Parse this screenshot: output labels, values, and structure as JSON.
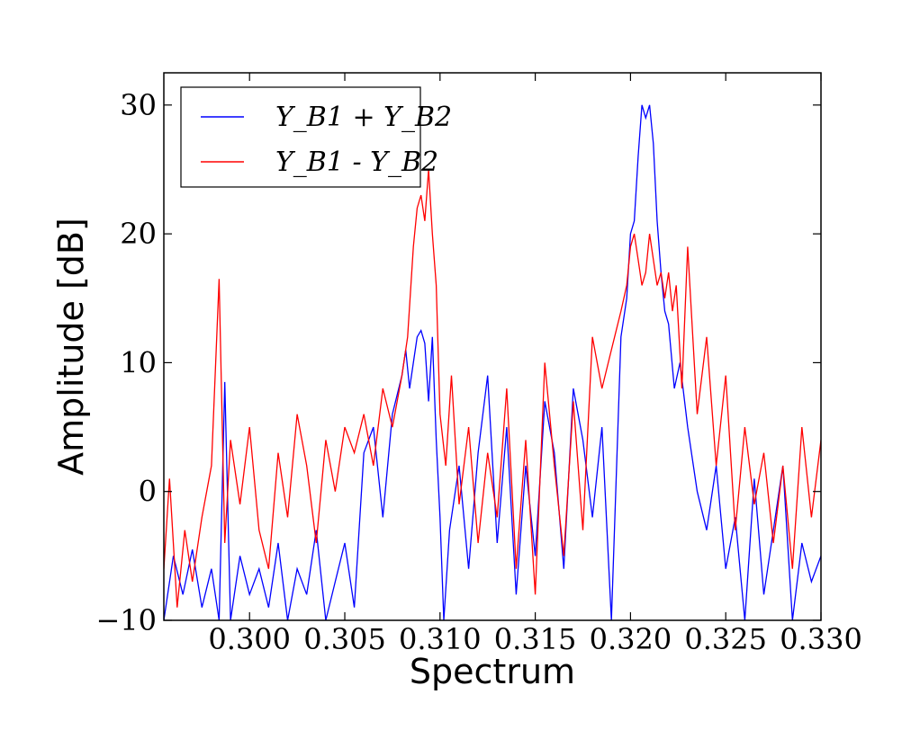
{
  "chart_data": {
    "type": "line",
    "title": "",
    "xlabel": "Spectrum",
    "ylabel": "Amplitude [dB]",
    "xlim": [
      0.2955,
      0.33
    ],
    "ylim": [
      -10,
      32.5
    ],
    "xticks": [
      0.3,
      0.305,
      0.31,
      0.315,
      0.32,
      0.325,
      0.33
    ],
    "xtick_labels": [
      "0.300",
      "0.305",
      "0.310",
      "0.315",
      "0.320",
      "0.325",
      "0.330"
    ],
    "yticks": [
      -10,
      0,
      10,
      20,
      30
    ],
    "ytick_labels": [
      "−10",
      "0",
      "10",
      "20",
      "30"
    ],
    "grid": false,
    "legend_position": "top-left",
    "series": [
      {
        "name": "Y_B1 + Y_B2",
        "color": "#0000ff",
        "x": [
          0.2955,
          0.296,
          0.2965,
          0.297,
          0.2975,
          0.298,
          0.2984,
          0.2987,
          0.299,
          0.2995,
          0.3,
          0.3005,
          0.301,
          0.3015,
          0.302,
          0.3025,
          0.303,
          0.3035,
          0.304,
          0.3045,
          0.305,
          0.3055,
          0.306,
          0.3065,
          0.307,
          0.3075,
          0.308,
          0.3082,
          0.3084,
          0.3086,
          0.3088,
          0.309,
          0.3092,
          0.3094,
          0.3096,
          0.3098,
          0.31,
          0.3102,
          0.3105,
          0.311,
          0.3115,
          0.312,
          0.3125,
          0.313,
          0.3135,
          0.314,
          0.3145,
          0.315,
          0.3155,
          0.316,
          0.3165,
          0.317,
          0.3175,
          0.318,
          0.3185,
          0.319,
          0.3195,
          0.3198,
          0.32,
          0.3202,
          0.3204,
          0.3206,
          0.3208,
          0.321,
          0.3212,
          0.3214,
          0.3216,
          0.3218,
          0.322,
          0.3223,
          0.3226,
          0.323,
          0.3235,
          0.324,
          0.3245,
          0.325,
          0.3255,
          0.326,
          0.3265,
          0.327,
          0.3275,
          0.328,
          0.3285,
          0.329,
          0.3295,
          0.33
        ],
        "values": [
          -10,
          -5,
          -8,
          -4.5,
          -9,
          -6,
          -10,
          8.5,
          -10,
          -5,
          -8,
          -6,
          -9,
          -4,
          -10,
          -6,
          -8,
          -3,
          -10,
          -7,
          -4,
          -9,
          3,
          5,
          -2,
          6,
          9,
          11,
          8,
          10,
          12,
          12.5,
          11.5,
          7,
          12,
          4,
          -2,
          -10,
          -3,
          2,
          -6,
          3,
          9,
          -4,
          5,
          -8,
          2,
          -5,
          7,
          3,
          -6,
          8,
          4,
          -2,
          5,
          -10,
          12,
          15,
          20,
          21,
          26,
          30,
          29,
          30,
          27,
          21,
          17,
          14,
          13,
          8,
          10,
          5,
          0,
          -3,
          2,
          -6,
          -2,
          -10,
          1,
          -8,
          -3,
          2,
          -10,
          -4,
          -7,
          -5
        ]
      },
      {
        "name": "Y_B1 - Y_B2",
        "color": "#ff0000",
        "x": [
          0.2955,
          0.2958,
          0.2962,
          0.2966,
          0.297,
          0.2975,
          0.298,
          0.2984,
          0.2987,
          0.299,
          0.2995,
          0.3,
          0.3005,
          0.301,
          0.3015,
          0.302,
          0.3025,
          0.303,
          0.3035,
          0.304,
          0.3045,
          0.305,
          0.3055,
          0.306,
          0.3065,
          0.307,
          0.3075,
          0.308,
          0.3083,
          0.3086,
          0.3088,
          0.309,
          0.3092,
          0.3094,
          0.3096,
          0.3098,
          0.31,
          0.3103,
          0.3106,
          0.311,
          0.3115,
          0.312,
          0.3125,
          0.313,
          0.3135,
          0.314,
          0.3145,
          0.315,
          0.3155,
          0.316,
          0.3165,
          0.317,
          0.3175,
          0.318,
          0.3185,
          0.319,
          0.3195,
          0.3198,
          0.32,
          0.3202,
          0.3204,
          0.3206,
          0.3208,
          0.321,
          0.3212,
          0.3214,
          0.3216,
          0.3218,
          0.322,
          0.3222,
          0.3224,
          0.3227,
          0.323,
          0.3235,
          0.324,
          0.3245,
          0.325,
          0.3255,
          0.326,
          0.3265,
          0.327,
          0.3275,
          0.328,
          0.3285,
          0.329,
          0.3295,
          0.33
        ],
        "values": [
          -6,
          1,
          -9,
          -3,
          -7,
          -2,
          2,
          16.5,
          -4,
          4,
          -1,
          5,
          -3,
          -6,
          3,
          -2,
          6,
          2,
          -4,
          4,
          0,
          5,
          3,
          6,
          2,
          8,
          5,
          9,
          12,
          19,
          22,
          23,
          21,
          25,
          20,
          16,
          6,
          2,
          9,
          -1,
          5,
          -4,
          3,
          -2,
          8,
          -6,
          4,
          -8,
          10,
          2,
          -5,
          7,
          -3,
          12,
          8,
          11,
          14,
          16,
          19,
          20,
          18,
          16,
          17,
          20,
          18,
          16,
          17,
          15,
          17,
          14,
          16,
          8,
          19,
          6,
          12,
          2,
          9,
          -3,
          5,
          -1,
          3,
          -4,
          2,
          -6,
          5,
          -2,
          4
        ]
      }
    ]
  }
}
